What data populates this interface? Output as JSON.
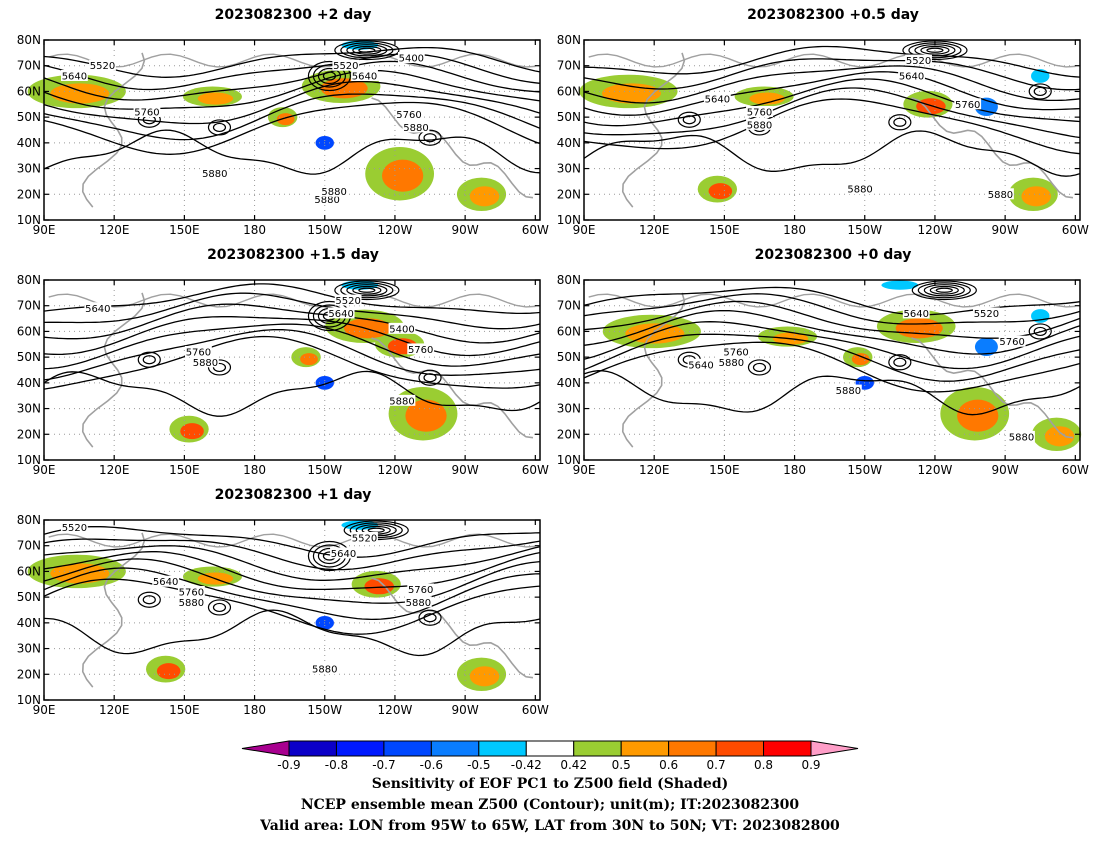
{
  "panels": [
    {
      "title": "2023082300 +2 day",
      "contour_labels": [
        {
          "text": "5640",
          "lon": 103,
          "lat": 66
        },
        {
          "text": "5520",
          "lon": 115,
          "lat": 70
        },
        {
          "text": "5760",
          "lon": 134,
          "lat": 52
        },
        {
          "text": "5880",
          "lon": 163,
          "lat": 28
        },
        {
          "text": "5880",
          "lon": 211,
          "lat": 18
        },
        {
          "text": "5520",
          "lon": 219,
          "lat": 70
        },
        {
          "text": "5640",
          "lon": 227,
          "lat": 66
        },
        {
          "text": "5400",
          "lon": 247,
          "lat": 73
        },
        {
          "text": "5760",
          "lon": 246,
          "lat": 51
        },
        {
          "text": "5880",
          "lon": 249,
          "lat": 46
        },
        {
          "text": "5880",
          "lon": 214,
          "lat": 21
        }
      ]
    },
    {
      "title": "2023082300 +0.5 day",
      "contour_labels": [
        {
          "text": "5640",
          "lon": 147,
          "lat": 57
        },
        {
          "text": "5760",
          "lon": 165,
          "lat": 52
        },
        {
          "text": "5880",
          "lon": 165,
          "lat": 47
        },
        {
          "text": "5520",
          "lon": 233,
          "lat": 72
        },
        {
          "text": "5640",
          "lon": 230,
          "lat": 66
        },
        {
          "text": "5760",
          "lon": 254,
          "lat": 55
        },
        {
          "text": "5880",
          "lon": 208,
          "lat": 22
        },
        {
          "text": "5880",
          "lon": 268,
          "lat": 20
        }
      ]
    },
    {
      "title": "2023082300 +1.5 day",
      "contour_labels": [
        {
          "text": "5640",
          "lon": 113,
          "lat": 69
        },
        {
          "text": "5520",
          "lon": 220,
          "lat": 72
        },
        {
          "text": "5640",
          "lon": 217,
          "lat": 67
        },
        {
          "text": "5400",
          "lon": 243,
          "lat": 61
        },
        {
          "text": "5760",
          "lon": 156,
          "lat": 52
        },
        {
          "text": "5880",
          "lon": 159,
          "lat": 48
        },
        {
          "text": "5760",
          "lon": 251,
          "lat": 53
        },
        {
          "text": "5880",
          "lon": 243,
          "lat": 33
        }
      ]
    },
    {
      "title": "2023082300 +0 day",
      "contour_labels": [
        {
          "text": "5640",
          "lon": 232,
          "lat": 67
        },
        {
          "text": "5520",
          "lon": 262,
          "lat": 67
        },
        {
          "text": "5760",
          "lon": 155,
          "lat": 52
        },
        {
          "text": "5880",
          "lon": 153,
          "lat": 48
        },
        {
          "text": "5640",
          "lon": 140,
          "lat": 47
        },
        {
          "text": "5760",
          "lon": 273,
          "lat": 56
        },
        {
          "text": "5880",
          "lon": 203,
          "lat": 37
        },
        {
          "text": "5880",
          "lon": 277,
          "lat": 19
        }
      ]
    },
    {
      "title": "2023082300 +1 day",
      "contour_labels": [
        {
          "text": "5520",
          "lon": 103,
          "lat": 77
        },
        {
          "text": "5520",
          "lon": 227,
          "lat": 73
        },
        {
          "text": "5640",
          "lon": 218,
          "lat": 67
        },
        {
          "text": "5640",
          "lon": 142,
          "lat": 56
        },
        {
          "text": "5760",
          "lon": 153,
          "lat": 52
        },
        {
          "text": "5880",
          "lon": 153,
          "lat": 48
        },
        {
          "text": "5760",
          "lon": 251,
          "lat": 53
        },
        {
          "text": "5880",
          "lon": 250,
          "lat": 48
        },
        {
          "text": "5880",
          "lon": 210,
          "lat": 22
        }
      ]
    }
  ],
  "axes": {
    "lon_ticks": [
      "90E",
      "120E",
      "150E",
      "180",
      "150W",
      "120W",
      "90W",
      "60W"
    ],
    "lat_ticks": [
      "80N",
      "70N",
      "60N",
      "50N",
      "40N",
      "30N",
      "20N",
      "10N"
    ]
  },
  "colorbar": {
    "colors": [
      "#a8008f",
      "#0b00c8",
      "#0019ff",
      "#0047ff",
      "#0a7dff",
      "#00c8ff",
      "#ffffff",
      "#9acd32",
      "#ff9a00",
      "#ff7800",
      "#ff4b00",
      "#ff0000",
      "#ff9ec8"
    ],
    "labels": [
      "-0.9",
      "-0.8",
      "-0.7",
      "-0.6",
      "-0.5",
      "-0.42",
      "0.42",
      "0.5",
      "0.6",
      "0.7",
      "0.8",
      "0.9"
    ]
  },
  "captions": [
    "Sensitivity of EOF PC1 to Z500 field (Shaded)",
    "NCEP ensemble mean Z500 (Contour); unit(m); IT:2023082300",
    "Valid area: LON from 95W to 65W, LAT from 30N to 50N; VT: 2023082800"
  ]
}
